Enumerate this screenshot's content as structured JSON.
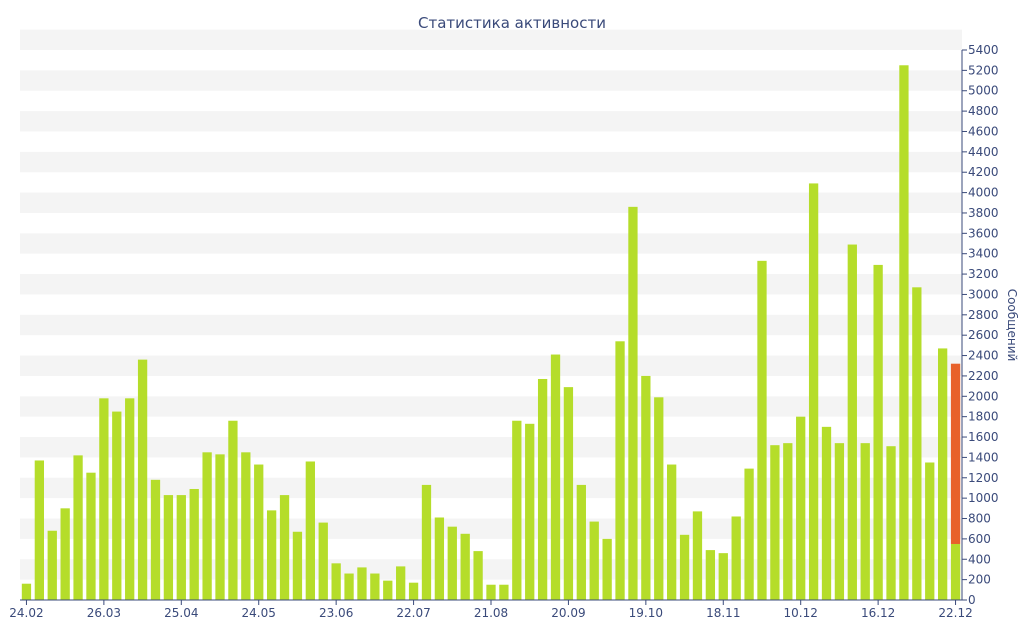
{
  "chart_data": {
    "type": "bar",
    "title": "Статистика активности",
    "ylabel": "Сообщений",
    "ylim": [
      0,
      5400
    ],
    "y_ticks": [
      0,
      200,
      400,
      600,
      800,
      1000,
      1200,
      1400,
      1600,
      1800,
      2000,
      2200,
      2400,
      2600,
      2800,
      3000,
      3200,
      3400,
      3600,
      3800,
      4000,
      4200,
      4400,
      4600,
      4800,
      5000,
      5200,
      5400
    ],
    "y_axis_side": "right",
    "x_tick_labels": [
      {
        "index": 0,
        "label": "24.02"
      },
      {
        "index": 6,
        "label": "26.03"
      },
      {
        "index": 12,
        "label": "25.04"
      },
      {
        "index": 18,
        "label": "24.05"
      },
      {
        "index": 24,
        "label": "23.06"
      },
      {
        "index": 30,
        "label": "22.07"
      },
      {
        "index": 36,
        "label": "21.08"
      },
      {
        "index": 42,
        "label": "20.09"
      },
      {
        "index": 48,
        "label": "19.10"
      },
      {
        "index": 54,
        "label": "18.11"
      },
      {
        "index": 60,
        "label": "10.12"
      },
      {
        "index": 66,
        "label": "16.12"
      },
      {
        "index": 72,
        "label": "22.12"
      }
    ],
    "values": [
      160,
      1370,
      680,
      900,
      1420,
      1250,
      1980,
      1850,
      1980,
      2360,
      1180,
      1030,
      1030,
      1090,
      1450,
      1430,
      1760,
      1450,
      1330,
      880,
      1030,
      670,
      1360,
      760,
      360,
      260,
      320,
      260,
      190,
      330,
      170,
      1130,
      810,
      720,
      650,
      480,
      150,
      150,
      1760,
      1730,
      2170,
      2410,
      2090,
      1130,
      770,
      600,
      2540,
      3860,
      2200,
      1990,
      1330,
      640,
      870,
      490,
      460,
      820,
      1290,
      3330,
      1520,
      1540,
      1800,
      4090,
      1700,
      1540,
      3490,
      1540,
      3290,
      1510,
      5250,
      3070,
      1350,
      2470,
      2320
    ],
    "last_bar_split": {
      "green": 550,
      "orange": 2320
    },
    "colors": {
      "bar": "#b5dd2a",
      "highlight": "#e8612a",
      "axis": "#3a4a7a",
      "band": "#f4f4f4"
    }
  }
}
